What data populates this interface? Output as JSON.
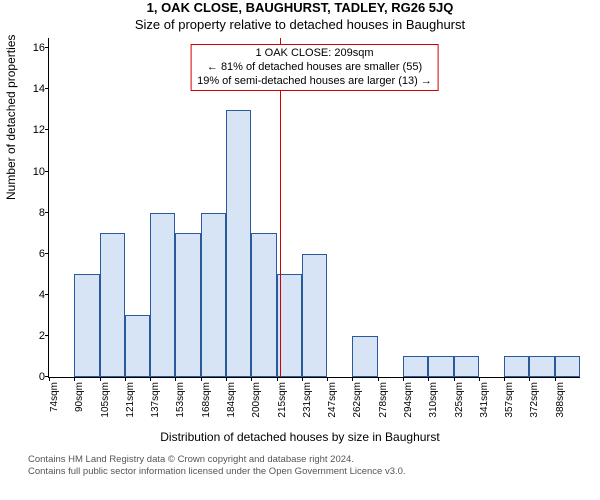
{
  "title": "1, OAK CLOSE, BAUGHURST, TADLEY, RG26 5JQ",
  "subtitle": "Size of property relative to detached houses in Baughurst",
  "chart": {
    "type": "histogram",
    "ylabel": "Number of detached properties",
    "xlabel": "Distribution of detached houses by size in Baughurst",
    "ylim": [
      0,
      16.5
    ],
    "yticks": [
      0,
      2,
      4,
      6,
      8,
      10,
      12,
      14,
      16
    ],
    "x_categories": [
      "74sqm",
      "90sqm",
      "105sqm",
      "121sqm",
      "137sqm",
      "153sqm",
      "168sqm",
      "184sqm",
      "200sqm",
      "215sqm",
      "231sqm",
      "247sqm",
      "262sqm",
      "278sqm",
      "294sqm",
      "310sqm",
      "325sqm",
      "341sqm",
      "357sqm",
      "372sqm",
      "388sqm"
    ],
    "values": [
      0,
      5,
      7,
      3,
      8,
      7,
      8,
      13,
      7,
      5,
      6,
      0,
      2,
      0,
      1,
      1,
      1,
      0,
      1,
      1,
      1
    ],
    "bar_fill": "#d6e4f5",
    "bar_border": "#2a5a9e",
    "background": "#ffffff",
    "axis_color": "#000000",
    "refline": {
      "position_category_index": 9,
      "fraction_within_bin": 0.15,
      "color": "#d00000"
    },
    "annotation": {
      "line1": "1 OAK CLOSE: 209sqm",
      "line2": "← 81% of detached houses are smaller (55)",
      "line3": "19% of semi-detached houses are larger (13) →",
      "border_color": "#d00000",
      "background": "#ffffff",
      "text_color": "#000000",
      "fontsize": 11
    },
    "title_fontsize": 13,
    "subtitle_fontsize": 13,
    "label_fontsize": 12,
    "tick_fontsize": 11
  },
  "footer": {
    "line1": "Contains HM Land Registry data © Crown copyright and database right 2024.",
    "line2": "Contains full public sector information licensed under the Open Government Licence v3.0."
  }
}
